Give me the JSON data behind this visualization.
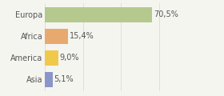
{
  "categories": [
    "Asia",
    "America",
    "Africa",
    "Europa"
  ],
  "values": [
    5.1,
    9.0,
    15.4,
    70.5
  ],
  "labels": [
    "5,1%",
    "9,0%",
    "15,4%",
    "70,5%"
  ],
  "bar_colors": [
    "#8b96c8",
    "#f0c84a",
    "#e8a96e",
    "#b5c98e"
  ],
  "background_color": "#f5f5f0",
  "xlim": [
    0,
    100
  ],
  "bar_height": 0.72,
  "label_fontsize": 7.0,
  "tick_fontsize": 7.0,
  "grid_color": "#ddddcc"
}
